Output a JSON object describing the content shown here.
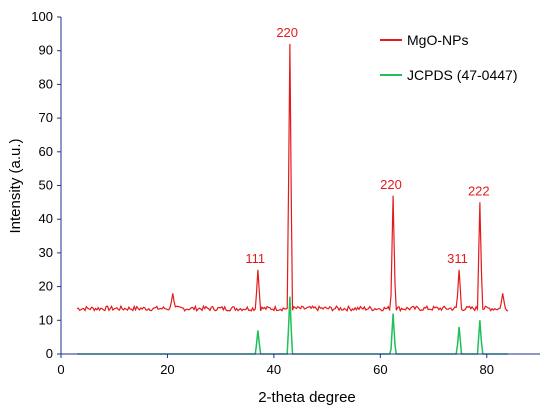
{
  "chart_data": {
    "type": "line",
    "xlabel": "2-theta degree",
    "ylabel": "Intensity (a.u.)",
    "xlim": [
      0,
      90
    ],
    "ylim": [
      0,
      100
    ],
    "xticks": [
      0,
      20,
      40,
      60,
      80
    ],
    "yticks": [
      0,
      10,
      20,
      30,
      40,
      50,
      60,
      70,
      80,
      90,
      100
    ],
    "grid": false,
    "legend_position": "top-right",
    "colors": {
      "axis": "#1f2f8c",
      "mgo": "#e41a1c",
      "jcpds": "#1fbf5a"
    },
    "series": [
      {
        "name": "MgO-NPs",
        "color": "#e41a1c",
        "baseline": 13.5,
        "x_range": [
          3,
          84
        ],
        "peaks": [
          {
            "x": 21.0,
            "y": 18
          },
          {
            "x": 37.0,
            "y": 25
          },
          {
            "x": 43.0,
            "y": 92
          },
          {
            "x": 62.4,
            "y": 47
          },
          {
            "x": 74.8,
            "y": 25
          },
          {
            "x": 78.7,
            "y": 45
          },
          {
            "x": 83.0,
            "y": 18
          }
        ]
      },
      {
        "name": "JCPDS (47-0447)",
        "color": "#1fbf5a",
        "baseline": 0,
        "x_range": [
          3,
          84
        ],
        "peaks": [
          {
            "x": 37.0,
            "y": 7
          },
          {
            "x": 43.0,
            "y": 17
          },
          {
            "x": 62.4,
            "y": 12
          },
          {
            "x": 74.8,
            "y": 8
          },
          {
            "x": 78.7,
            "y": 10
          }
        ]
      }
    ],
    "annotations": [
      {
        "text": "111",
        "x": 36.5,
        "y": 27
      },
      {
        "text": "220",
        "x": 42.5,
        "y": 94
      },
      {
        "text": "220",
        "x": 62.0,
        "y": 49
      },
      {
        "text": "311",
        "x": 74.5,
        "y": 27
      },
      {
        "text": "222",
        "x": 78.5,
        "y": 47
      }
    ]
  }
}
